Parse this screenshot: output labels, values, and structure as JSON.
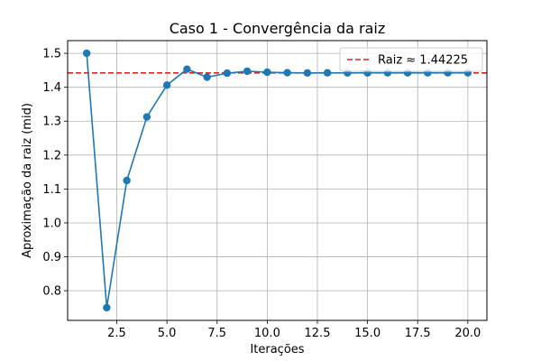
{
  "chart_data": {
    "type": "line",
    "title": "Caso 1 - Convergência da raiz",
    "xlabel": "Iterações",
    "ylabel": "Aproximação da raiz (mid)",
    "xlim": [
      0.05,
      20.95
    ],
    "ylim": [
      0.7125,
      1.5375
    ],
    "xticks": [
      2.5,
      5.0,
      7.5,
      10.0,
      12.5,
      15.0,
      17.5,
      20.0
    ],
    "xtick_labels": [
      "2.5",
      "5.0",
      "7.5",
      "10.0",
      "12.5",
      "15.0",
      "17.5",
      "20.0"
    ],
    "yticks": [
      0.8,
      0.9,
      1.0,
      1.1,
      1.2,
      1.3,
      1.4,
      1.5
    ],
    "ytick_labels": [
      "0.8",
      "0.9",
      "1.0",
      "1.1",
      "1.2",
      "1.3",
      "1.4",
      "1.5"
    ],
    "grid": true,
    "legend_position": "top-right",
    "series": [
      {
        "name": "",
        "color": "#1f77b4",
        "marker": "circle",
        "x": [
          1,
          2,
          3,
          4,
          5,
          6,
          7,
          8,
          9,
          10,
          11,
          12,
          13,
          14,
          15,
          16,
          17,
          18,
          19,
          20
        ],
        "y": [
          1.5,
          0.75,
          1.125,
          1.3125,
          1.40625,
          1.453125,
          1.4296875,
          1.44140625,
          1.447265625,
          1.4443359375,
          1.44287109375,
          1.442138671875,
          1.4425048828125,
          1.44232177734375,
          1.44241333007812,
          1.44245910644531,
          1.44248199462891,
          1.4424934387207,
          1.4424991607666,
          1.44249629974365
        ]
      }
    ],
    "reference_line": {
      "label": "Raiz ≈ 1.44225",
      "value": 1.44225,
      "color": "#d62728",
      "style": "dashed"
    }
  }
}
